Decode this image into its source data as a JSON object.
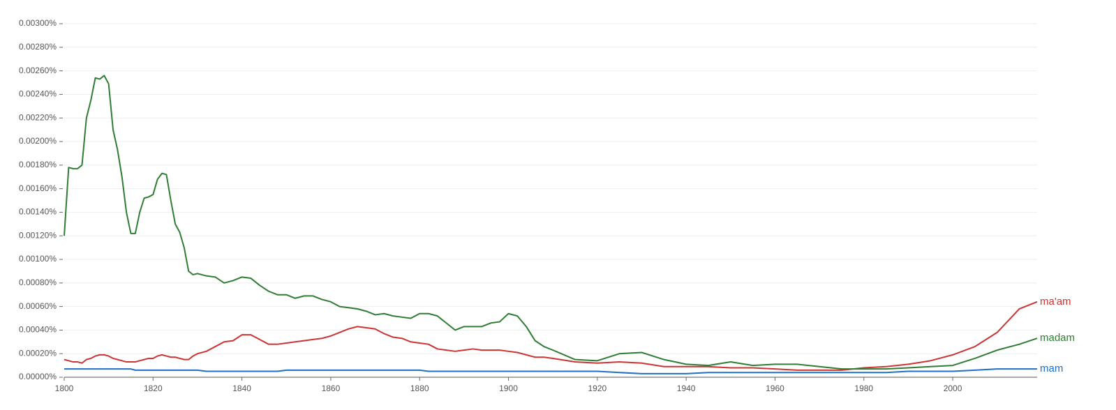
{
  "chart_data": {
    "type": "line",
    "x": [
      1800,
      1801,
      1802,
      1803,
      1804,
      1805,
      1806,
      1807,
      1808,
      1809,
      1810,
      1811,
      1812,
      1813,
      1814,
      1815,
      1816,
      1817,
      1818,
      1819,
      1820,
      1821,
      1822,
      1823,
      1824,
      1825,
      1826,
      1827,
      1828,
      1829,
      1830,
      1832,
      1834,
      1836,
      1838,
      1840,
      1842,
      1844,
      1846,
      1848,
      1850,
      1852,
      1854,
      1856,
      1858,
      1860,
      1862,
      1864,
      1866,
      1868,
      1870,
      1872,
      1874,
      1876,
      1878,
      1880,
      1882,
      1884,
      1886,
      1888,
      1890,
      1892,
      1894,
      1896,
      1898,
      1900,
      1902,
      1904,
      1906,
      1908,
      1910,
      1915,
      1920,
      1925,
      1930,
      1935,
      1940,
      1945,
      1950,
      1955,
      1960,
      1965,
      1970,
      1975,
      1980,
      1985,
      1990,
      1995,
      2000,
      2005,
      2010,
      2015,
      2019
    ],
    "series": [
      {
        "name": "ma'am",
        "color": "#cc3333",
        "values": [
          0.00015,
          0.00014,
          0.00013,
          0.00013,
          0.00012,
          0.00015,
          0.00016,
          0.00018,
          0.00019,
          0.00019,
          0.00018,
          0.00016,
          0.00015,
          0.00014,
          0.00013,
          0.00013,
          0.00013,
          0.00014,
          0.00015,
          0.00016,
          0.00016,
          0.00018,
          0.00019,
          0.00018,
          0.00017,
          0.00017,
          0.00016,
          0.00015,
          0.00015,
          0.00018,
          0.0002,
          0.00022,
          0.00026,
          0.0003,
          0.00031,
          0.00036,
          0.00036,
          0.00032,
          0.00028,
          0.00028,
          0.00029,
          0.0003,
          0.00031,
          0.00032,
          0.00033,
          0.00035,
          0.00038,
          0.00041,
          0.00043,
          0.00042,
          0.00041,
          0.00037,
          0.00034,
          0.00033,
          0.0003,
          0.00029,
          0.00028,
          0.00024,
          0.00023,
          0.00022,
          0.00023,
          0.00024,
          0.00023,
          0.00023,
          0.00023,
          0.00022,
          0.00021,
          0.00019,
          0.00017,
          0.00017,
          0.00016,
          0.00013,
          0.00012,
          0.00013,
          0.00012,
          9e-05,
          9e-05,
          9e-05,
          8e-05,
          8e-05,
          7e-05,
          6e-05,
          6e-05,
          6e-05,
          8e-05,
          9e-05,
          0.00011,
          0.00014,
          0.00019,
          0.00026,
          0.00038,
          0.00058,
          0.00064
        ]
      },
      {
        "name": "madam",
        "color": "#2e7d32",
        "values": [
          0.0012,
          0.00178,
          0.00177,
          0.00177,
          0.0018,
          0.0022,
          0.00235,
          0.00254,
          0.00253,
          0.00256,
          0.00249,
          0.0021,
          0.00193,
          0.0017,
          0.0014,
          0.00122,
          0.00122,
          0.0014,
          0.00152,
          0.00153,
          0.00155,
          0.00168,
          0.00173,
          0.00172,
          0.0015,
          0.0013,
          0.00123,
          0.0011,
          0.0009,
          0.00087,
          0.00088,
          0.00086,
          0.00085,
          0.0008,
          0.00082,
          0.00085,
          0.00084,
          0.00078,
          0.00073,
          0.0007,
          0.0007,
          0.00067,
          0.00069,
          0.00069,
          0.00066,
          0.00064,
          0.0006,
          0.00059,
          0.00058,
          0.00056,
          0.00053,
          0.00054,
          0.00052,
          0.00051,
          0.0005,
          0.00054,
          0.00054,
          0.00052,
          0.00046,
          0.0004,
          0.00043,
          0.00043,
          0.00043,
          0.00046,
          0.00047,
          0.00054,
          0.00052,
          0.00043,
          0.00031,
          0.00026,
          0.00023,
          0.00015,
          0.00014,
          0.0002,
          0.00021,
          0.00015,
          0.00011,
          0.0001,
          0.00013,
          0.0001,
          0.00011,
          0.00011,
          9e-05,
          7e-05,
          7e-05,
          7e-05,
          8e-05,
          9e-05,
          0.0001,
          0.00016,
          0.00023,
          0.00028,
          0.00033
        ]
      },
      {
        "name": "mam",
        "color": "#1e6fc8",
        "values": [
          7e-05,
          7e-05,
          7e-05,
          7e-05,
          7e-05,
          7e-05,
          7e-05,
          7e-05,
          7e-05,
          7e-05,
          7e-05,
          7e-05,
          7e-05,
          7e-05,
          7e-05,
          7e-05,
          6e-05,
          6e-05,
          6e-05,
          6e-05,
          6e-05,
          6e-05,
          6e-05,
          6e-05,
          6e-05,
          6e-05,
          6e-05,
          6e-05,
          6e-05,
          6e-05,
          6e-05,
          5e-05,
          5e-05,
          5e-05,
          5e-05,
          5e-05,
          5e-05,
          5e-05,
          5e-05,
          5e-05,
          6e-05,
          6e-05,
          6e-05,
          6e-05,
          6e-05,
          6e-05,
          6e-05,
          6e-05,
          6e-05,
          6e-05,
          6e-05,
          6e-05,
          6e-05,
          6e-05,
          6e-05,
          6e-05,
          5e-05,
          5e-05,
          5e-05,
          5e-05,
          5e-05,
          5e-05,
          5e-05,
          5e-05,
          5e-05,
          5e-05,
          5e-05,
          5e-05,
          5e-05,
          5e-05,
          5e-05,
          5e-05,
          5e-05,
          4e-05,
          3e-05,
          3e-05,
          3e-05,
          4e-05,
          4e-05,
          4e-05,
          4e-05,
          4e-05,
          4e-05,
          4e-05,
          4e-05,
          4e-05,
          5e-05,
          5e-05,
          5e-05,
          6e-05,
          7e-05,
          7e-05,
          7e-05
        ]
      }
    ],
    "xlim": [
      1800,
      2019
    ],
    "xticks": [
      1800,
      1820,
      1840,
      1860,
      1880,
      1900,
      1920,
      1940,
      1960,
      1980,
      2000
    ],
    "ylim": [
      0,
      0.003
    ],
    "yticks": [
      {
        "value": 0,
        "label": "0.00000%"
      },
      {
        "value": 0.0002,
        "label": "0.00020%"
      },
      {
        "value": 0.0004,
        "label": "0.00040%"
      },
      {
        "value": 0.0006,
        "label": "0.00060%"
      },
      {
        "value": 0.0008,
        "label": "0.00080%"
      },
      {
        "value": 0.001,
        "label": "0.00100%"
      },
      {
        "value": 0.0012,
        "label": "0.00120%"
      },
      {
        "value": 0.0014,
        "label": "0.00140%"
      },
      {
        "value": 0.0016,
        "label": "0.00160%"
      },
      {
        "value": 0.0018,
        "label": "0.00180%"
      },
      {
        "value": 0.002,
        "label": "0.00200%"
      },
      {
        "value": 0.0022,
        "label": "0.00220%"
      },
      {
        "value": 0.0024,
        "label": "0.00240%"
      },
      {
        "value": 0.0026,
        "label": "0.00260%"
      },
      {
        "value": 0.0028,
        "label": "0.00280%"
      },
      {
        "value": 0.003,
        "label": "0.00300%"
      }
    ],
    "grid": true
  }
}
